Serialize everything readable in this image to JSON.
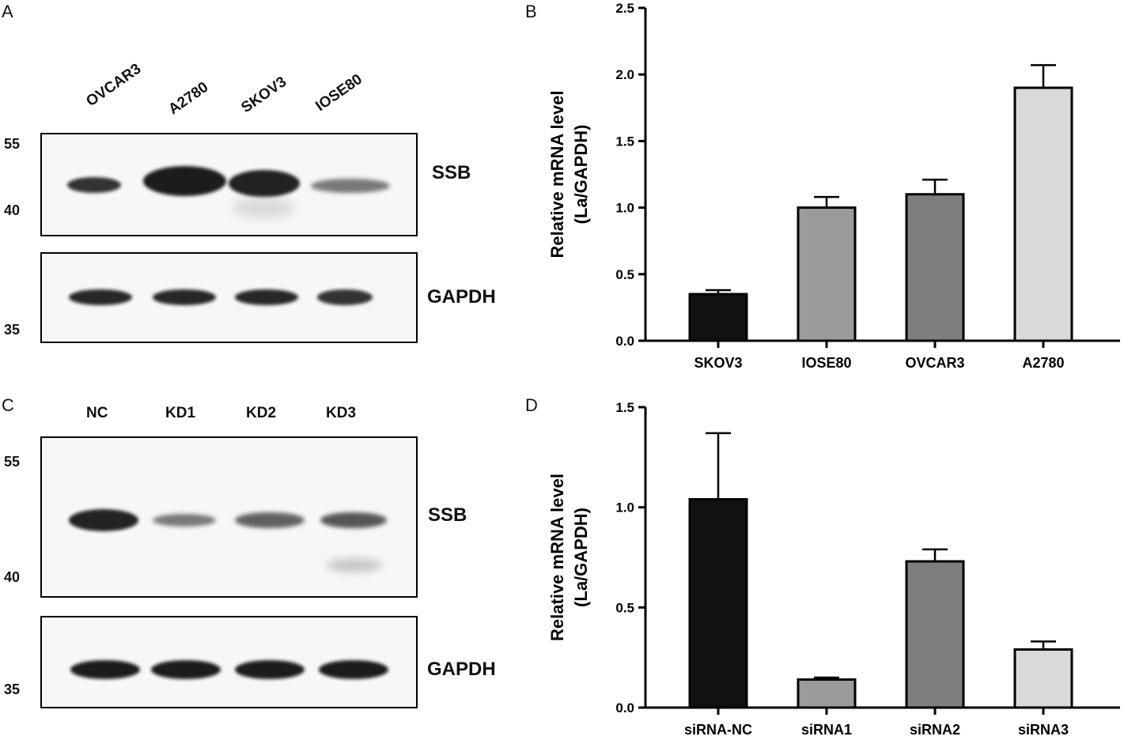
{
  "panels": {
    "a": {
      "letter": "A",
      "lanes": [
        "OVCAR3",
        "A2780",
        "SKOV3",
        "IOSE80"
      ],
      "markers_top": [
        "55",
        "40"
      ],
      "markers_bottom": [
        "35"
      ],
      "protein_top": "SSB",
      "protein_bottom": "GAPDH"
    },
    "b": {
      "letter": "B"
    },
    "c": {
      "letter": "C",
      "lanes": [
        "NC",
        "KD1",
        "KD2",
        "KD3"
      ],
      "markers_top": [
        "55",
        "40"
      ],
      "markers_bottom": [
        "35"
      ],
      "protein_top": "SSB",
      "protein_bottom": "GAPDH"
    },
    "d": {
      "letter": "D"
    }
  },
  "chart_data": [
    {
      "type": "bar",
      "categories": [
        "SKOV3",
        "IOSE80",
        "OVCAR3",
        "A2780"
      ],
      "values": [
        0.35,
        1.0,
        1.1,
        1.9
      ],
      "errors": [
        0.03,
        0.08,
        0.11,
        0.17
      ],
      "colors": [
        "#111111",
        "#9a9b9d",
        "#7d7e7f",
        "#d8d9d9"
      ],
      "ylabel": "Relative mRNA level",
      "ylabel2": "(La/GAPDH)",
      "ylim": [
        0,
        2.5
      ],
      "yticks": [
        "0.0",
        "0.5",
        "1.0",
        "1.5",
        "2.0",
        "2.5"
      ],
      "grid": false
    },
    {
      "type": "bar",
      "categories": [
        "siRNA-NC",
        "siRNA1",
        "siRNA2",
        "siRNA3"
      ],
      "values": [
        1.04,
        0.14,
        0.73,
        0.29
      ],
      "errors": [
        0.33,
        0.01,
        0.06,
        0.04
      ],
      "colors": [
        "#111111",
        "#9a9b9d",
        "#7d7e7f",
        "#d8d9d9"
      ],
      "ylabel": "Relative mRNA level",
      "ylabel2": "(La/GAPDH)",
      "ylim": [
        0,
        1.5
      ],
      "yticks": [
        "0.0",
        "0.5",
        "1.0",
        "1.5"
      ],
      "grid": false
    }
  ]
}
